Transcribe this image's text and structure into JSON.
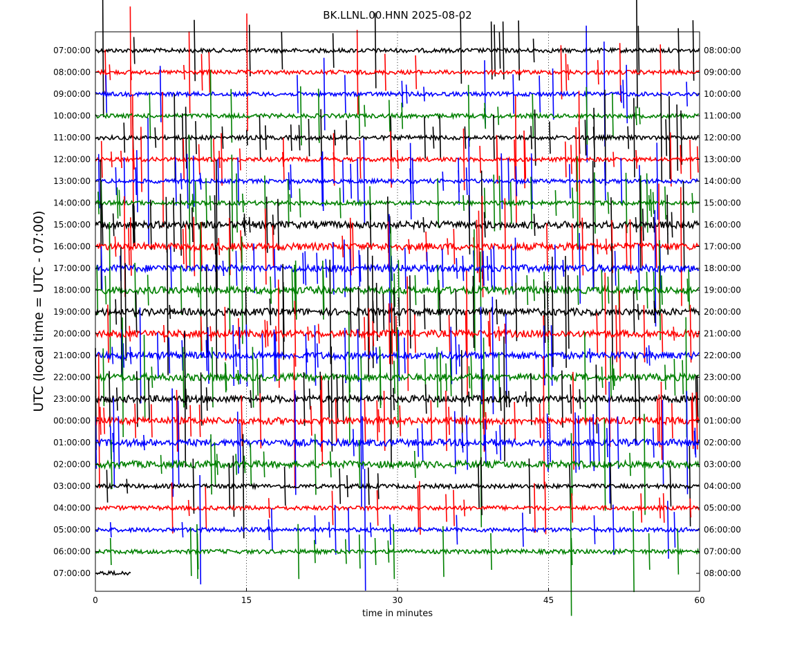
{
  "chart_data": {
    "type": "line",
    "title": "BK.LLNL.00.HNN 2025-08-02",
    "xlabel": "time in minutes",
    "ylabel": "UTC (local time = UTC - 07:00)",
    "xlim": [
      0,
      60
    ],
    "x_ticks": [
      0,
      15,
      30,
      45,
      60
    ],
    "x_tick_labels": [
      "0",
      "15",
      "30",
      "45",
      "60"
    ],
    "grid": "vertical dotted at 15, 30, 45",
    "trace_colors": [
      "#000000",
      "#ff0000",
      "#0000ff",
      "#008000"
    ],
    "rows_left": [
      "07:00:00",
      "08:00:00",
      "09:00:00",
      "10:00:00",
      "11:00:00",
      "12:00:00",
      "13:00:00",
      "14:00:00",
      "15:00:00",
      "16:00:00",
      "17:00:00",
      "18:00:00",
      "19:00:00",
      "20:00:00",
      "21:00:00",
      "22:00:00",
      "23:00:00",
      "00:00:00",
      "01:00:00",
      "02:00:00",
      "03:00:00",
      "04:00:00",
      "05:00:00",
      "06:00:00",
      "07:00:00"
    ],
    "rows_right": [
      "08:00:00",
      "09:00:00",
      "10:00:00",
      "11:00:00",
      "12:00:00",
      "13:00:00",
      "14:00:00",
      "15:00:00",
      "16:00:00",
      "17:00:00",
      "18:00:00",
      "19:00:00",
      "20:00:00",
      "21:00:00",
      "22:00:00",
      "23:00:00",
      "00:00:00",
      "01:00:00",
      "02:00:00",
      "03:00:00",
      "04:00:00",
      "05:00:00",
      "06:00:00",
      "07:00:00",
      "08:00:00"
    ],
    "last_row_end_minute": 3.6,
    "series": [
      {
        "values": [
          [
            "07:00:00",
            "trace"
          ]
        ]
      }
    ]
  }
}
